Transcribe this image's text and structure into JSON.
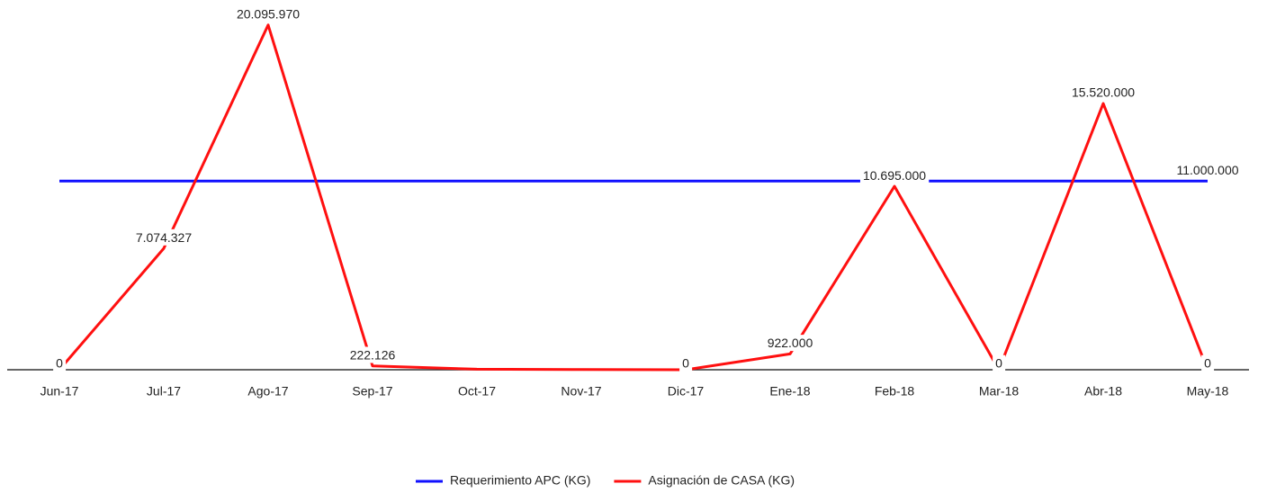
{
  "chart_data": {
    "type": "line",
    "categories": [
      "Jun-17",
      "Jul-17",
      "Ago-17",
      "Sep-17",
      "Oct-17",
      "Nov-17",
      "Dic-17",
      "Ene-18",
      "Feb-18",
      "Mar-18",
      "Abr-18",
      "May-18"
    ],
    "ylim": [
      0,
      21500000
    ],
    "legend": "bottom",
    "series": [
      {
        "name": "Requerimiento APC (KG)",
        "color": "#1010ff",
        "values": [
          11000000,
          11000000,
          11000000,
          11000000,
          11000000,
          11000000,
          11000000,
          11000000,
          11000000,
          11000000,
          11000000,
          11000000
        ],
        "value_labels": [
          null,
          null,
          null,
          null,
          null,
          null,
          null,
          null,
          null,
          null,
          null,
          "11.000.000"
        ]
      },
      {
        "name": "Asignación de CASA (KG)",
        "color": "#ff1010",
        "values": [
          0,
          7074327,
          20095970,
          222126,
          30000,
          10000,
          0,
          922000,
          10695000,
          0,
          15520000,
          0
        ],
        "value_labels": [
          "0",
          "7.074.327",
          "20.095.970",
          "222.126",
          null,
          null,
          "0",
          "922.000",
          "10.695.000",
          "0",
          "15.520.000",
          "0"
        ]
      }
    ]
  }
}
